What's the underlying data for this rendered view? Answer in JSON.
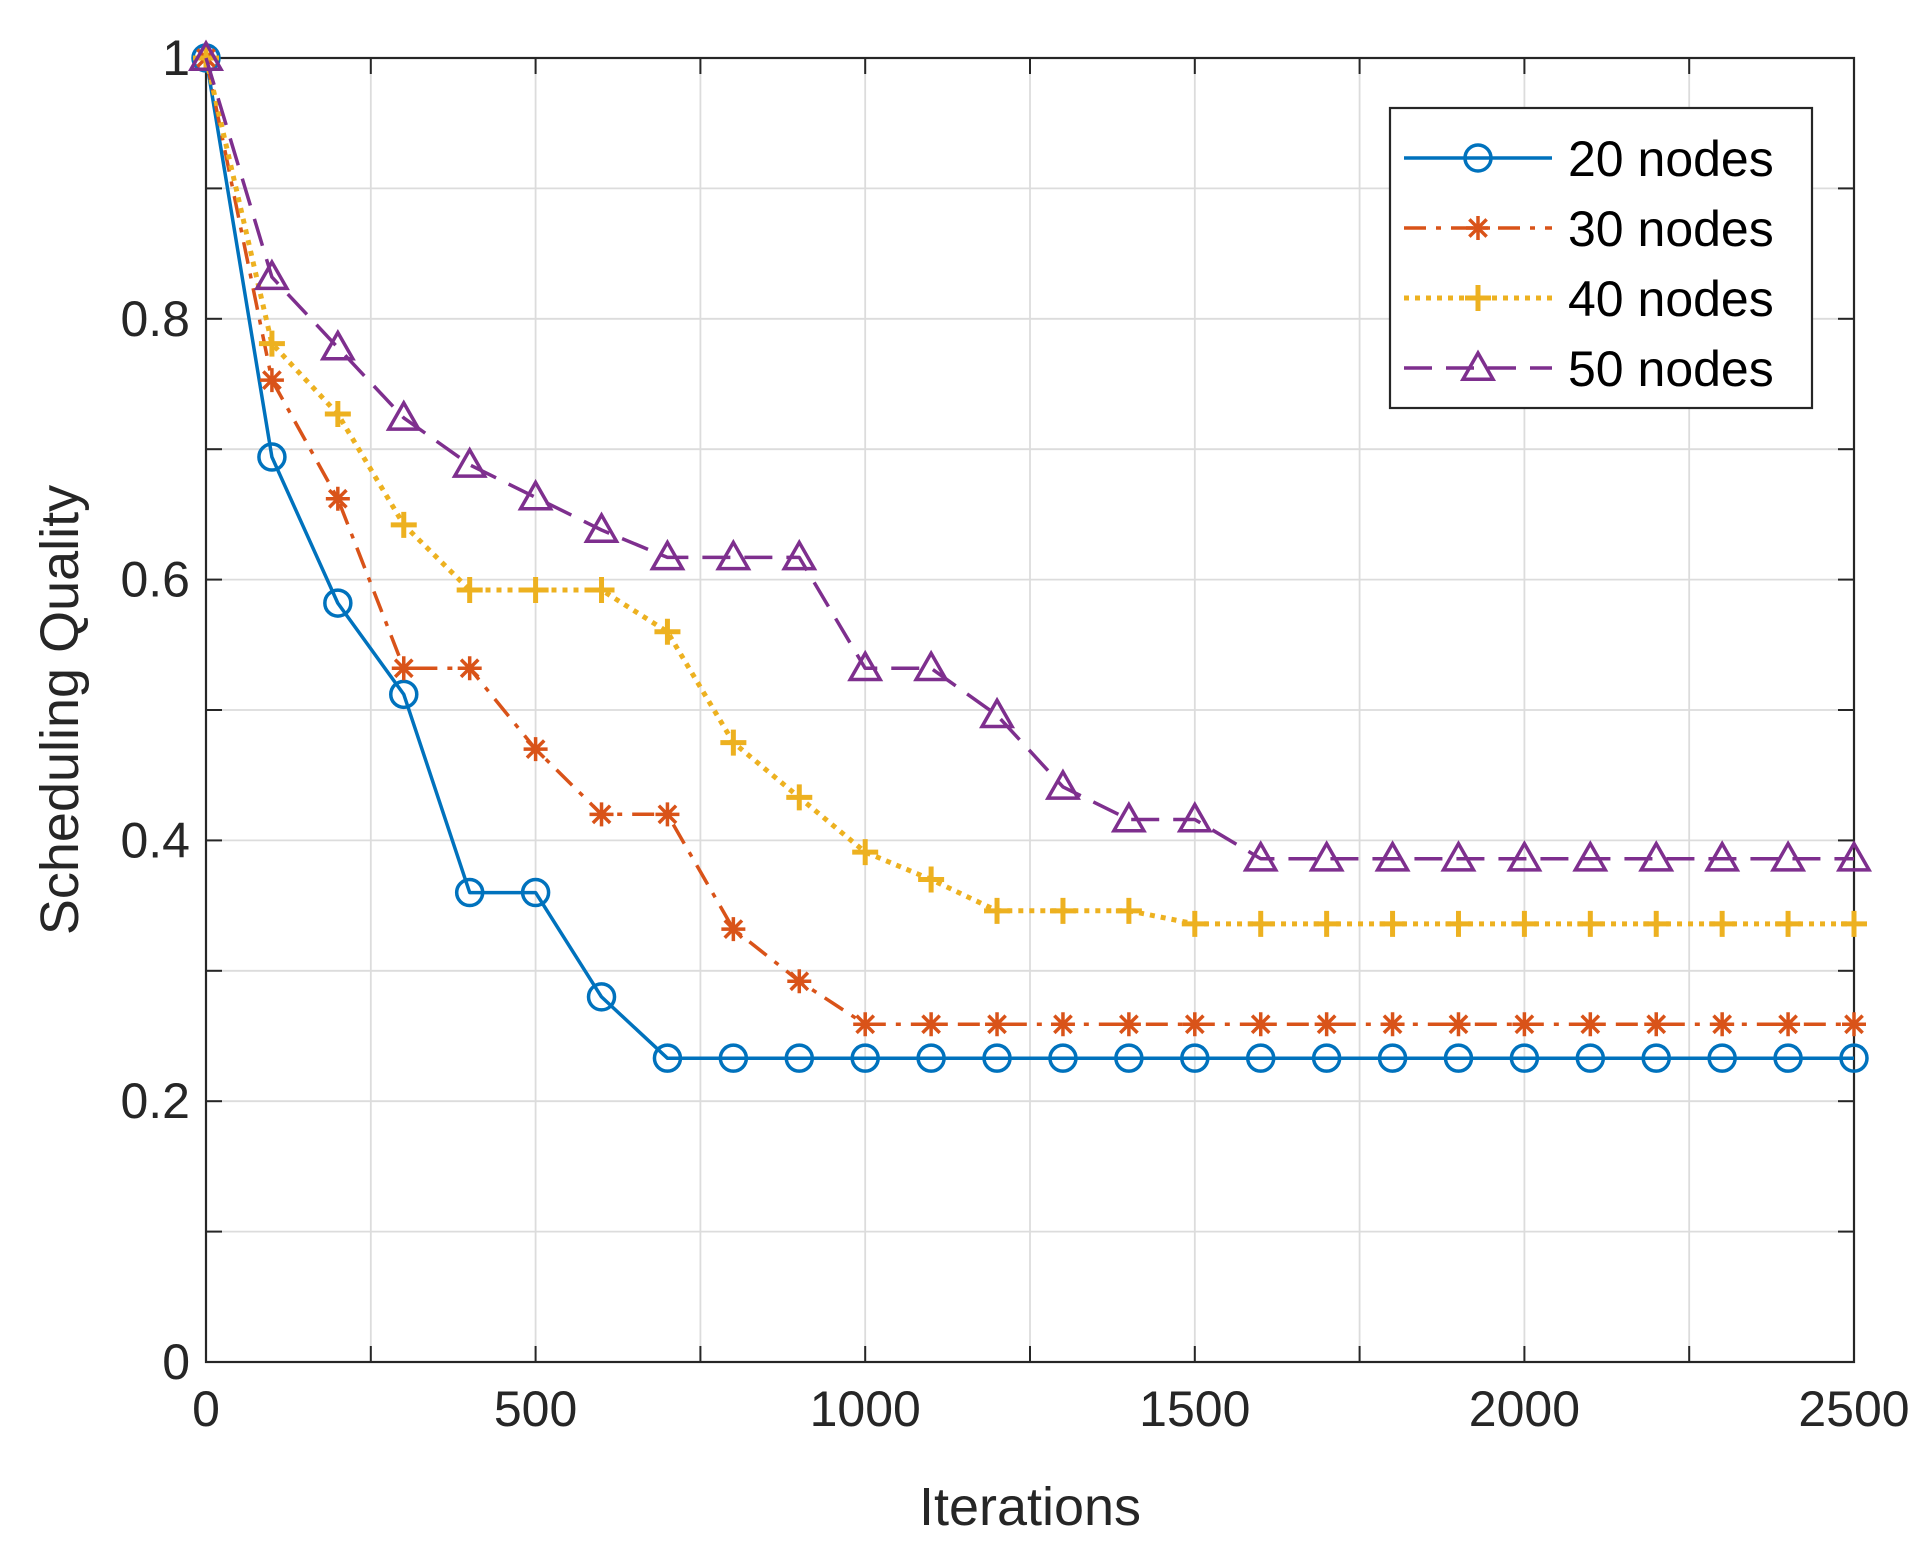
{
  "chart_data": {
    "type": "line",
    "title": "",
    "xlabel": "Iterations",
    "ylabel": "Scheduling Quality",
    "xlim": [
      0,
      2500
    ],
    "ylim": [
      0,
      1
    ],
    "grid": true,
    "x_ticks": [
      0,
      500,
      1000,
      1500,
      2000,
      2500
    ],
    "x_tick_labels": [
      "0",
      "500",
      "1000",
      "1500",
      "2000",
      "2500"
    ],
    "x_minor_ticks": [
      250,
      750,
      1250,
      1750,
      2250
    ],
    "y_ticks": [
      0,
      0.2,
      0.4,
      0.6,
      0.8,
      1
    ],
    "y_tick_labels": [
      "0",
      "0.2",
      "0.4",
      "0.6",
      "0.8",
      "1"
    ],
    "y_minor_ticks": [
      0.1,
      0.3,
      0.5,
      0.7,
      0.9
    ],
    "legend_position": "top-right",
    "x": [
      0,
      100,
      200,
      300,
      400,
      500,
      600,
      700,
      800,
      900,
      1000,
      1100,
      1200,
      1300,
      1400,
      1500,
      1600,
      1700,
      1800,
      1900,
      2000,
      2100,
      2200,
      2300,
      2400,
      2500
    ],
    "series": [
      {
        "name": "20 nodes",
        "color": "#0072BD",
        "marker": "circle",
        "line_style": "solid",
        "values": [
          1.0,
          0.694,
          0.582,
          0.512,
          0.36,
          0.36,
          0.28,
          0.233,
          0.233,
          0.233,
          0.233,
          0.233,
          0.233,
          0.233,
          0.233,
          0.233,
          0.233,
          0.233,
          0.233,
          0.233,
          0.233,
          0.233,
          0.233,
          0.233,
          0.233,
          0.233
        ]
      },
      {
        "name": "30 nodes",
        "color": "#D95319",
        "marker": "asterisk",
        "line_style": "dashdot",
        "values": [
          1.0,
          0.753,
          0.662,
          0.532,
          0.532,
          0.47,
          0.42,
          0.42,
          0.332,
          0.292,
          0.259,
          0.259,
          0.259,
          0.259,
          0.259,
          0.259,
          0.259,
          0.259,
          0.259,
          0.259,
          0.259,
          0.259,
          0.259,
          0.259,
          0.259,
          0.259
        ]
      },
      {
        "name": "40 nodes",
        "color": "#EDB120",
        "marker": "plus",
        "line_style": "dotted",
        "values": [
          1.0,
          0.781,
          0.727,
          0.642,
          0.592,
          0.592,
          0.592,
          0.56,
          0.475,
          0.433,
          0.391,
          0.37,
          0.346,
          0.346,
          0.346,
          0.336,
          0.336,
          0.336,
          0.336,
          0.336,
          0.336,
          0.336,
          0.336,
          0.336,
          0.336,
          0.336
        ]
      },
      {
        "name": "50 nodes",
        "color": "#7E2F8E",
        "marker": "triangle",
        "line_style": "dashed",
        "values": [
          1.0,
          0.832,
          0.778,
          0.724,
          0.688,
          0.663,
          0.638,
          0.617,
          0.617,
          0.617,
          0.532,
          0.532,
          0.496,
          0.441,
          0.416,
          0.416,
          0.386,
          0.386,
          0.386,
          0.386,
          0.386,
          0.386,
          0.386,
          0.386,
          0.386,
          0.386
        ]
      }
    ]
  }
}
